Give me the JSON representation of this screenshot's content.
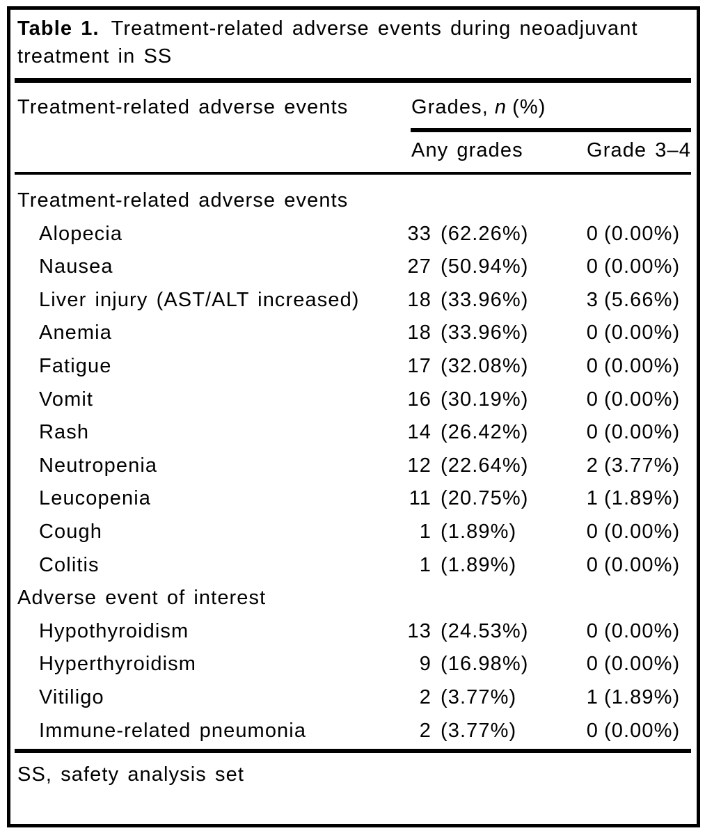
{
  "colors": {
    "text": "#000000",
    "rule": "#000000",
    "background": "#ffffff"
  },
  "title": {
    "label": "Table 1.",
    "line1": "Treatment-related adverse events during neoadjuvant",
    "line2": "treatment in SS"
  },
  "header": {
    "col1": "Treatment-related adverse events",
    "group_prefix": "Grades,",
    "group_n": "n",
    "group_suffix": "(%)",
    "sub_any": "Any grades",
    "sub_grade34": "Grade 3–4"
  },
  "table": {
    "sections": [
      {
        "header": "Treatment-related adverse events",
        "rows": [
          {
            "label": "Alopecia",
            "any_n": "33",
            "any_pct": "(62.26%)",
            "g34_n": "0",
            "g34_pct": "(0.00%)"
          },
          {
            "label": "Nausea",
            "any_n": "27",
            "any_pct": "(50.94%)",
            "g34_n": "0",
            "g34_pct": "(0.00%)"
          },
          {
            "label": "Liver injury (AST/ALT increased)",
            "any_n": "18",
            "any_pct": "(33.96%)",
            "g34_n": "3",
            "g34_pct": "(5.66%)"
          },
          {
            "label": "Anemia",
            "any_n": "18",
            "any_pct": "(33.96%)",
            "g34_n": "0",
            "g34_pct": "(0.00%)"
          },
          {
            "label": "Fatigue",
            "any_n": "17",
            "any_pct": "(32.08%)",
            "g34_n": "0",
            "g34_pct": "(0.00%)"
          },
          {
            "label": "Vomit",
            "any_n": "16",
            "any_pct": "(30.19%)",
            "g34_n": "0",
            "g34_pct": "(0.00%)"
          },
          {
            "label": "Rash",
            "any_n": "14",
            "any_pct": "(26.42%)",
            "g34_n": "0",
            "g34_pct": "(0.00%)"
          },
          {
            "label": "Neutropenia",
            "any_n": "12",
            "any_pct": "(22.64%)",
            "g34_n": "2",
            "g34_pct": "(3.77%)"
          },
          {
            "label": "Leucopenia",
            "any_n": "11",
            "any_pct": "(20.75%)",
            "g34_n": "1",
            "g34_pct": "(1.89%)"
          },
          {
            "label": "Cough",
            "any_n": "1",
            "any_pct": "(1.89%)",
            "g34_n": "0",
            "g34_pct": "(0.00%)"
          },
          {
            "label": "Colitis",
            "any_n": "1",
            "any_pct": "(1.89%)",
            "g34_n": "0",
            "g34_pct": "(0.00%)"
          }
        ]
      },
      {
        "header": "Adverse event of interest",
        "rows": [
          {
            "label": "Hypothyroidism",
            "any_n": "13",
            "any_pct": "(24.53%)",
            "g34_n": "0",
            "g34_pct": "(0.00%)"
          },
          {
            "label": "Hyperthyroidism",
            "any_n": "9",
            "any_pct": "(16.98%)",
            "g34_n": "0",
            "g34_pct": "(0.00%)"
          },
          {
            "label": "Vitiligo",
            "any_n": "2",
            "any_pct": "(3.77%)",
            "g34_n": "1",
            "g34_pct": "(1.89%)"
          },
          {
            "label": "Immune-related pneumonia",
            "any_n": "2",
            "any_pct": "(3.77%)",
            "g34_n": "0",
            "g34_pct": "(0.00%)"
          }
        ]
      }
    ]
  },
  "footnote": "SS, safety analysis set"
}
